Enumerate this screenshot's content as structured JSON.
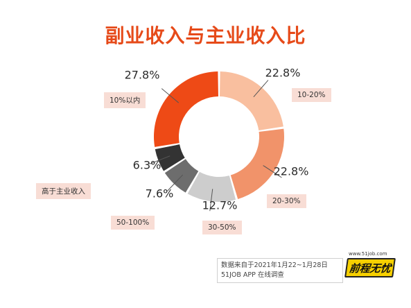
{
  "chart_data": {
    "type": "pie",
    "title": "副业收入与主业收入比",
    "slices": [
      {
        "label": "10-20%",
        "value": 22.8,
        "value_label": "22.8%",
        "color": "#f9bf9f"
      },
      {
        "label": "20-30%",
        "value": 22.8,
        "value_label": "22.8%",
        "color": "#f1936a"
      },
      {
        "label": "30-50%",
        "value": 12.7,
        "value_label": "12.7%",
        "color": "#cdcdcd"
      },
      {
        "label": "50-100%",
        "value": 7.6,
        "value_label": "7.6%",
        "color": "#6d6d6d"
      },
      {
        "label": "高于主业收入",
        "value": 6.3,
        "value_label": "6.3%",
        "color": "#333333"
      },
      {
        "label": "10%以内",
        "value": 27.8,
        "value_label": "27.8%",
        "color": "#ee4a16"
      }
    ],
    "legend_placement": "labels beside slices",
    "source_line1": "数据来自于2021年1月22~1月28日",
    "source_line2": "51JOB APP 在线调查"
  },
  "logo": {
    "url": "www.51job.com",
    "brand": "前程无忧"
  }
}
